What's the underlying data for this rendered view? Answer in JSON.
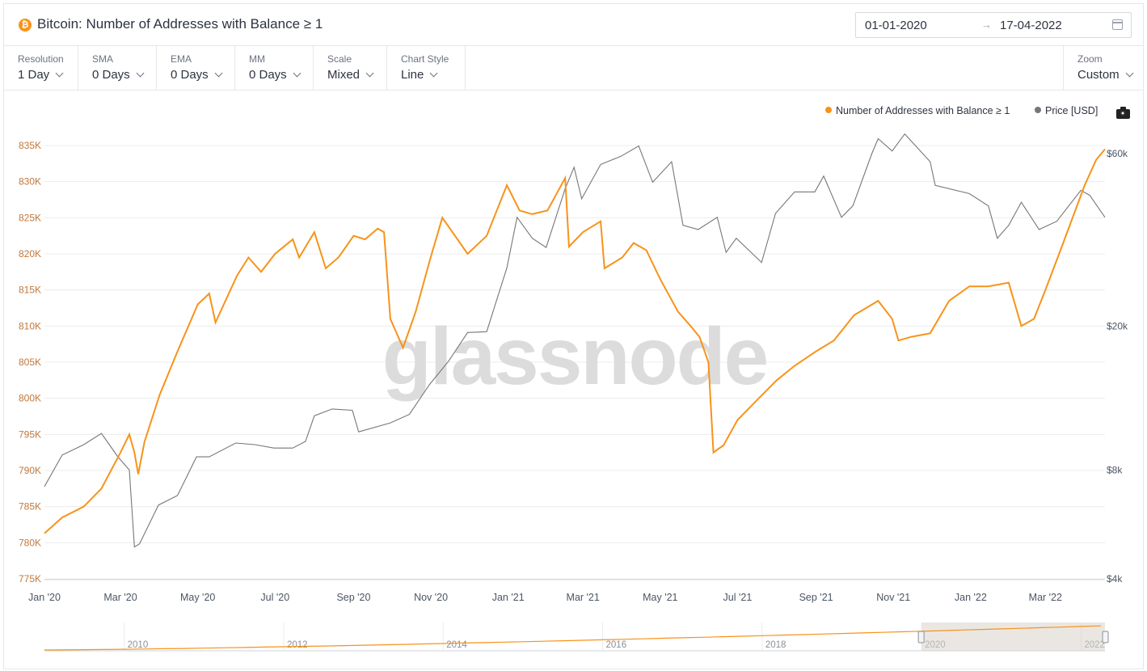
{
  "header": {
    "title": "Bitcoin: Number of Addresses with Balance ≥ 1",
    "date_start": "01-01-2020",
    "date_arrow": "→",
    "date_end": "17-04-2022"
  },
  "controls": [
    {
      "label": "Resolution",
      "value": "1 Day"
    },
    {
      "label": "SMA",
      "value": "0 Days"
    },
    {
      "label": "EMA",
      "value": "0 Days"
    },
    {
      "label": "MM",
      "value": "0 Days"
    },
    {
      "label": "Scale",
      "value": "Mixed"
    },
    {
      "label": "Chart Style",
      "value": "Line"
    }
  ],
  "zoom": {
    "label": "Zoom",
    "value": "Custom"
  },
  "icons": {
    "brand": "bitcoin-icon",
    "calendar": "calendar-icon",
    "dropdown": "chevron-down-icon",
    "export": "camera-icon"
  },
  "colors": {
    "addresses": "#f7931a",
    "price": "#777777",
    "watermark": "#dcdcdc"
  },
  "watermark": "glassnode",
  "chart_data": {
    "type": "line",
    "xlim": [
      "2020-01-01",
      "2022-04-17"
    ],
    "x_ticks": [
      "Jan '20",
      "Mar '20",
      "May '20",
      "Jul '20",
      "Sep '20",
      "Nov '20",
      "Jan '21",
      "Mar '21",
      "May '21",
      "Jul '21",
      "Sep '21",
      "Nov '21",
      "Jan '22",
      "Mar '22"
    ],
    "y_left": {
      "scale": "linear",
      "range": [
        775000,
        835000
      ],
      "ticks": [
        "775K",
        "780K",
        "785K",
        "790K",
        "795K",
        "800K",
        "805K",
        "810K",
        "815K",
        "820K",
        "825K",
        "830K",
        "835K"
      ]
    },
    "y_right": {
      "scale": "log",
      "range": [
        4000,
        60000
      ],
      "ticks": [
        "$4k",
        "$8k",
        "$20k",
        "$60k"
      ]
    },
    "grid": "horizontal",
    "legend_position": "top-right",
    "series": [
      {
        "name": "Number of Addresses with Balance ≥ 1",
        "axis": "left",
        "points": [
          [
            "2020-01-01",
            781300
          ],
          [
            "2020-01-15",
            783500
          ],
          [
            "2020-02-01",
            785000
          ],
          [
            "2020-02-15",
            787500
          ],
          [
            "2020-03-01",
            792500
          ],
          [
            "2020-03-08",
            795000
          ],
          [
            "2020-03-12",
            792500
          ],
          [
            "2020-03-15",
            789500
          ],
          [
            "2020-03-20",
            794000
          ],
          [
            "2020-04-01",
            800500
          ],
          [
            "2020-04-15",
            806500
          ],
          [
            "2020-05-01",
            813000
          ],
          [
            "2020-05-10",
            814500
          ],
          [
            "2020-05-15",
            810500
          ],
          [
            "2020-06-01",
            817000
          ],
          [
            "2020-06-10",
            819500
          ],
          [
            "2020-06-20",
            817500
          ],
          [
            "2020-07-01",
            820000
          ],
          [
            "2020-07-15",
            822000
          ],
          [
            "2020-07-20",
            819500
          ],
          [
            "2020-08-01",
            823000
          ],
          [
            "2020-08-10",
            818000
          ],
          [
            "2020-08-20",
            819500
          ],
          [
            "2020-09-01",
            822500
          ],
          [
            "2020-09-10",
            822000
          ],
          [
            "2020-09-20",
            823500
          ],
          [
            "2020-09-25",
            823000
          ],
          [
            "2020-09-30",
            811000
          ],
          [
            "2020-10-10",
            807000
          ],
          [
            "2020-10-20",
            812000
          ],
          [
            "2020-10-31",
            819000
          ],
          [
            "2020-11-10",
            825000
          ],
          [
            "2020-11-20",
            822500
          ],
          [
            "2020-11-30",
            820000
          ],
          [
            "2020-12-15",
            822500
          ],
          [
            "2020-12-31",
            829500
          ],
          [
            "2021-01-10",
            826000
          ],
          [
            "2021-01-20",
            825500
          ],
          [
            "2021-02-01",
            826000
          ],
          [
            "2021-02-15",
            830500
          ],
          [
            "2021-02-18",
            821000
          ],
          [
            "2021-03-01",
            823000
          ],
          [
            "2021-03-15",
            824500
          ],
          [
            "2021-03-18",
            818000
          ],
          [
            "2021-04-01",
            819500
          ],
          [
            "2021-04-10",
            821500
          ],
          [
            "2021-04-20",
            820500
          ],
          [
            "2021-05-01",
            816500
          ],
          [
            "2021-05-15",
            812000
          ],
          [
            "2021-05-25",
            810000
          ],
          [
            "2021-06-01",
            808500
          ],
          [
            "2021-06-08",
            805000
          ],
          [
            "2021-06-12",
            792500
          ],
          [
            "2021-06-20",
            793500
          ],
          [
            "2021-07-01",
            797000
          ],
          [
            "2021-07-15",
            799500
          ],
          [
            "2021-08-01",
            802500
          ],
          [
            "2021-08-15",
            804500
          ],
          [
            "2021-09-01",
            806500
          ],
          [
            "2021-09-15",
            808000
          ],
          [
            "2021-10-01",
            811500
          ],
          [
            "2021-10-20",
            813500
          ],
          [
            "2021-10-31",
            811000
          ],
          [
            "2021-11-05",
            808000
          ],
          [
            "2021-11-15",
            808500
          ],
          [
            "2021-11-30",
            809000
          ],
          [
            "2021-12-15",
            813500
          ],
          [
            "2021-12-31",
            815500
          ],
          [
            "2022-01-15",
            815500
          ],
          [
            "2022-01-31",
            816000
          ],
          [
            "2022-02-10",
            810000
          ],
          [
            "2022-02-20",
            811000
          ],
          [
            "2022-03-01",
            815000
          ],
          [
            "2022-03-15",
            821500
          ],
          [
            "2022-04-01",
            829500
          ],
          [
            "2022-04-10",
            833000
          ],
          [
            "2022-04-17",
            834500
          ]
        ]
      },
      {
        "name": "Price [USD]",
        "axis": "right",
        "points": [
          [
            "2020-01-01",
            7200
          ],
          [
            "2020-01-15",
            8800
          ],
          [
            "2020-02-01",
            9400
          ],
          [
            "2020-02-15",
            10100
          ],
          [
            "2020-02-28",
            8700
          ],
          [
            "2020-03-08",
            8000
          ],
          [
            "2020-03-12",
            4900
          ],
          [
            "2020-03-16",
            5000
          ],
          [
            "2020-03-31",
            6400
          ],
          [
            "2020-04-15",
            6800
          ],
          [
            "2020-04-30",
            8700
          ],
          [
            "2020-05-10",
            8700
          ],
          [
            "2020-05-31",
            9500
          ],
          [
            "2020-06-15",
            9400
          ],
          [
            "2020-06-30",
            9200
          ],
          [
            "2020-07-15",
            9200
          ],
          [
            "2020-07-25",
            9600
          ],
          [
            "2020-08-01",
            11300
          ],
          [
            "2020-08-15",
            11800
          ],
          [
            "2020-08-31",
            11700
          ],
          [
            "2020-09-05",
            10200
          ],
          [
            "2020-09-30",
            10800
          ],
          [
            "2020-10-15",
            11400
          ],
          [
            "2020-10-31",
            13800
          ],
          [
            "2020-11-15",
            16000
          ],
          [
            "2020-11-30",
            19200
          ],
          [
            "2020-12-15",
            19300
          ],
          [
            "2020-12-31",
            29000
          ],
          [
            "2021-01-08",
            40000
          ],
          [
            "2021-01-20",
            35000
          ],
          [
            "2021-01-31",
            33000
          ],
          [
            "2021-02-15",
            48000
          ],
          [
            "2021-02-22",
            55000
          ],
          [
            "2021-02-28",
            45000
          ],
          [
            "2021-03-15",
            56000
          ],
          [
            "2021-03-31",
            59000
          ],
          [
            "2021-04-14",
            63000
          ],
          [
            "2021-04-25",
            50000
          ],
          [
            "2021-05-10",
            57000
          ],
          [
            "2021-05-19",
            38000
          ],
          [
            "2021-05-31",
            37000
          ],
          [
            "2021-06-15",
            40000
          ],
          [
            "2021-06-22",
            32000
          ],
          [
            "2021-06-30",
            35000
          ],
          [
            "2021-07-20",
            30000
          ],
          [
            "2021-07-31",
            41000
          ],
          [
            "2021-08-15",
            47000
          ],
          [
            "2021-08-31",
            47000
          ],
          [
            "2021-09-07",
            52000
          ],
          [
            "2021-09-21",
            40000
          ],
          [
            "2021-09-30",
            43000
          ],
          [
            "2021-10-15",
            60000
          ],
          [
            "2021-10-20",
            66000
          ],
          [
            "2021-10-31",
            61000
          ],
          [
            "2021-11-10",
            68000
          ],
          [
            "2021-11-30",
            57000
          ],
          [
            "2021-12-04",
            49000
          ],
          [
            "2021-12-31",
            46500
          ],
          [
            "2022-01-15",
            43000
          ],
          [
            "2022-01-22",
            35000
          ],
          [
            "2022-01-31",
            38000
          ],
          [
            "2022-02-10",
            44000
          ],
          [
            "2022-02-24",
            37000
          ],
          [
            "2022-03-10",
            39000
          ],
          [
            "2022-03-29",
            47500
          ],
          [
            "2022-04-05",
            46000
          ],
          [
            "2022-04-17",
            40000
          ]
        ]
      }
    ],
    "navigator": {
      "x_ticks": [
        "2010",
        "2012",
        "2014",
        "2016",
        "2018",
        "2020",
        "2022"
      ]
    }
  }
}
